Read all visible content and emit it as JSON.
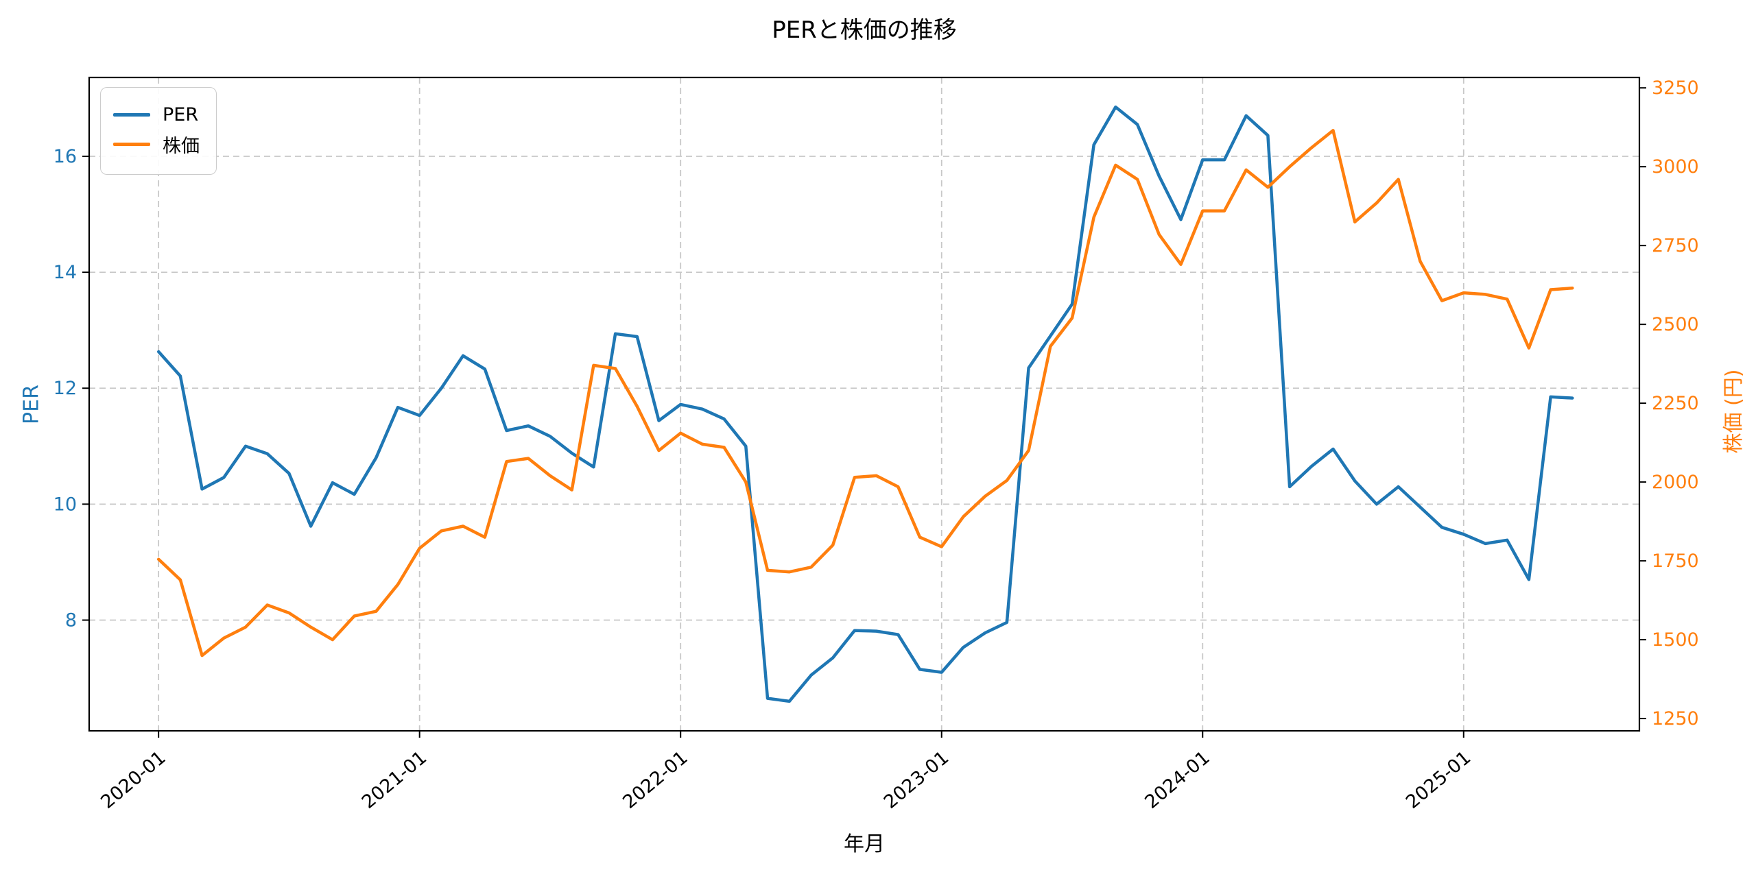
{
  "title": "PERと株価の推移",
  "legend": {
    "per": "PER",
    "price": "株価"
  },
  "axes": {
    "x_label": "年月",
    "y_left_label": "PER",
    "y_right_label": "株価 (円)",
    "x_tick_labels": [
      "2020-01",
      "2021-01",
      "2022-01",
      "2023-01",
      "2024-01",
      "2025-01"
    ],
    "y_left_ticks": [
      8,
      10,
      12,
      14,
      16
    ],
    "y_right_ticks": [
      1250,
      1500,
      1750,
      2000,
      2250,
      2500,
      2750,
      3000,
      3250
    ]
  },
  "colors": {
    "per": "#1f77b4",
    "price": "#ff7f0e",
    "grid": "#c8c8c8",
    "spine": "#000000"
  },
  "chart_data": {
    "type": "line",
    "title": "PERと株価の推移",
    "xlabel": "年月",
    "ylabel_left": "PER",
    "ylabel_right": "株価 (円)",
    "grid": true,
    "legend_position": "upper left",
    "x_index_range": [
      -3.19,
      68.08
    ],
    "y_left_range": [
      6.09,
      17.36
    ],
    "y_right_range": [
      1211,
      3283
    ],
    "x": [
      "2020-01",
      "2020-02",
      "2020-03",
      "2020-04",
      "2020-05",
      "2020-06",
      "2020-07",
      "2020-08",
      "2020-09",
      "2020-10",
      "2020-11",
      "2020-12",
      "2021-01",
      "2021-02",
      "2021-03",
      "2021-04",
      "2021-05",
      "2021-06",
      "2021-07",
      "2021-08",
      "2021-09",
      "2021-10",
      "2021-11",
      "2021-12",
      "2022-01",
      "2022-02",
      "2022-03",
      "2022-04",
      "2022-05",
      "2022-06",
      "2022-07",
      "2022-08",
      "2022-09",
      "2022-10",
      "2022-11",
      "2022-12",
      "2023-01",
      "2023-02",
      "2023-03",
      "2023-04",
      "2023-05",
      "2023-06",
      "2023-07",
      "2023-08",
      "2023-09",
      "2023-10",
      "2023-11",
      "2023-12",
      "2024-01",
      "2024-02",
      "2024-03",
      "2024-04",
      "2024-05",
      "2024-06",
      "2024-07",
      "2024-08",
      "2024-09",
      "2024-10",
      "2024-11",
      "2024-12",
      "2025-01",
      "2025-02",
      "2025-03",
      "2025-04",
      "2025-05",
      "2025-06"
    ],
    "series": [
      {
        "name": "PER",
        "axis": "left",
        "color": "#1f77b4",
        "values": [
          12.63,
          12.21,
          10.26,
          10.46,
          11.0,
          10.87,
          10.53,
          9.62,
          10.37,
          10.17,
          10.8,
          11.67,
          11.53,
          12.0,
          12.56,
          12.33,
          11.27,
          11.35,
          11.17,
          10.88,
          10.64,
          12.94,
          12.89,
          11.44,
          11.72,
          11.64,
          11.47,
          11.0,
          6.65,
          6.6,
          7.05,
          7.35,
          7.82,
          7.81,
          7.75,
          7.15,
          7.1,
          7.53,
          7.78,
          7.96,
          12.35,
          12.9,
          13.45,
          16.2,
          16.85,
          16.55,
          15.66,
          14.91,
          15.94,
          15.94,
          16.7,
          16.36,
          10.3,
          10.65,
          10.95,
          10.4,
          10.0,
          10.3,
          9.95,
          9.6,
          9.48,
          9.32,
          9.38,
          8.7,
          11.85,
          11.83
        ]
      },
      {
        "name": "株価",
        "axis": "right",
        "color": "#ff7f0e",
        "values": [
          1755,
          1690,
          1450,
          1505,
          1540,
          1610,
          1585,
          1540,
          1500,
          1575,
          1590,
          1675,
          1790,
          1845,
          1860,
          1825,
          2065,
          2075,
          2020,
          1975,
          2370,
          2360,
          2240,
          2100,
          2155,
          2120,
          2110,
          2000,
          1720,
          1715,
          1730,
          1800,
          2015,
          2020,
          1985,
          1825,
          1795,
          1890,
          1955,
          2005,
          2100,
          2430,
          2520,
          2840,
          3005,
          2960,
          2785,
          2690,
          2860,
          2860,
          2990,
          2935,
          3000,
          3060,
          3115,
          2825,
          2885,
          2960,
          2700,
          2575,
          2600,
          2595,
          2580,
          2425,
          2610,
          2615
        ]
      }
    ]
  }
}
